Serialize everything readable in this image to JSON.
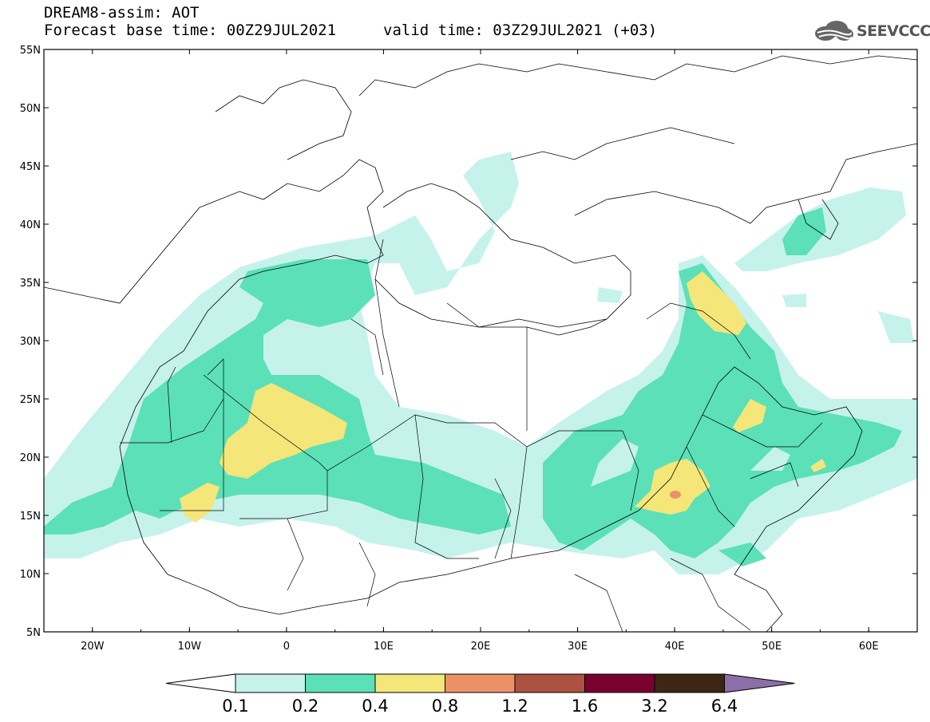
{
  "header": {
    "model_line": "DREAM8-assim: AOT",
    "base_time_line": "Forecast base time: 00Z29JUL2021",
    "valid_time_line": "valid time: 03Z29JUL2021 (+03)"
  },
  "logo": {
    "text": "SEEVCCC",
    "icon": "cloud-logo-icon"
  },
  "map_axes": {
    "lat_labels": [
      "55N",
      "50N",
      "45N",
      "40N",
      "35N",
      "30N",
      "25N",
      "20N",
      "15N",
      "10N",
      "5N"
    ],
    "lon_labels": [
      "20W",
      "10W",
      "0",
      "10E",
      "20E",
      "30E",
      "40E",
      "50E",
      "60E"
    ],
    "lon_range": [
      -25,
      65
    ],
    "lat_range": [
      5,
      55
    ]
  },
  "colorbar": {
    "labels": [
      "0.1",
      "0.2",
      "0.4",
      "0.8",
      "1.2",
      "1.6",
      "3.2",
      "6.4"
    ],
    "colors": [
      "#ffffff",
      "#c6f2ec",
      "#5ce0b8",
      "#f5e67a",
      "#eb9168",
      "#ad5240",
      "#7a0030",
      "#3d2714",
      "#8c6fa8"
    ]
  }
}
